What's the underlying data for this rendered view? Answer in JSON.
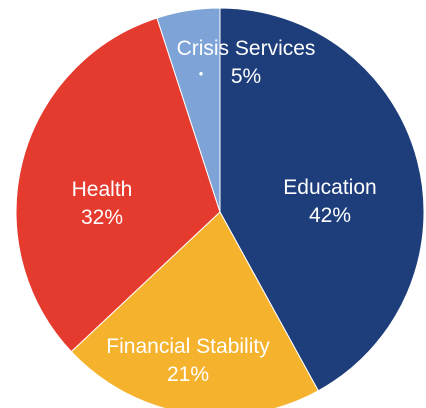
{
  "chart_data": {
    "type": "pie",
    "start_angle_deg": 0,
    "direction": "clockwise",
    "slices": [
      {
        "label": "Education",
        "value": 42,
        "value_label": "42%",
        "color": "#1e3d7b"
      },
      {
        "label": "Financial Stability",
        "value": 21,
        "value_label": "21%",
        "color": "#f5b22d"
      },
      {
        "label": "Health",
        "value": 32,
        "value_label": "32%",
        "color": "#e53b2f"
      },
      {
        "label": "Crisis Services",
        "value": 5,
        "value_label": "5%",
        "color": "#7ea3d6",
        "bullet": "•"
      }
    ],
    "stroke_color": "#ffffff"
  }
}
